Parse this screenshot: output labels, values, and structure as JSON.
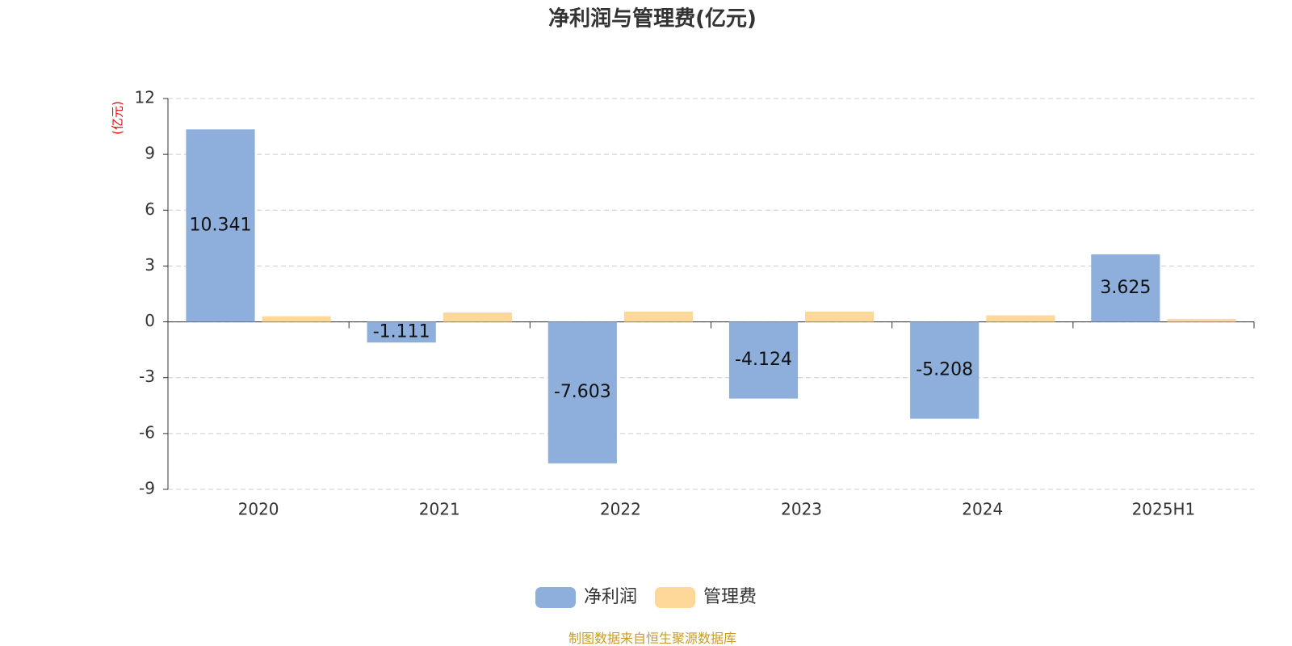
{
  "chart_data": {
    "type": "bar",
    "title": "净利润与管理费(亿元)",
    "y_label": "(亿元)",
    "categories": [
      "2020",
      "2021",
      "2022",
      "2023",
      "2024",
      "2025H1"
    ],
    "series": [
      {
        "name": "净利润",
        "color": "#8eaedb",
        "values": [
          10.341,
          -1.111,
          -7.603,
          -4.124,
          -5.208,
          3.625
        ]
      },
      {
        "name": "管理费",
        "color": "#fdd898",
        "values": [
          0.3,
          0.5,
          0.55,
          0.55,
          0.35,
          0.15
        ]
      }
    ],
    "show_value_labels": [
      true,
      false
    ],
    "ylim": [
      -9,
      12
    ],
    "yticks": [
      -9,
      -6,
      -3,
      0,
      3,
      6,
      9,
      12
    ],
    "grid": true,
    "legend": "bottom",
    "source": "制图数据来自恒生聚源数据库"
  }
}
